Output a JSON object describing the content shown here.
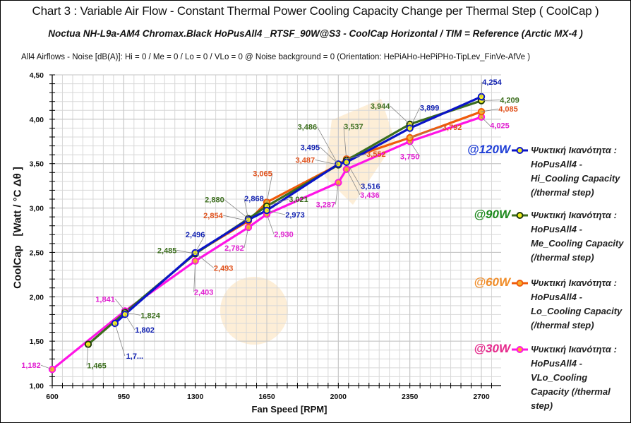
{
  "header": {
    "title": "Chart 3 : Variable Air Flow - Constant Thermal Power  Cooling Capacity Change per Thermal Step ( CoolCap )",
    "subtitle": "Noctua NH-L9a-AM4 Chromax.Black  HoPusAll4 _RTSF_90W@S3  -  CoolCap  Horizontal    /  TIM =  Reference   (Arctic MX-4 )",
    "info": "All4  Airflows  -  Noise [dB(A)]: Hi = 0 / Me = 0 / Lo = 0 / VLo = 0 @ Noise background = 0    (Orientation: HePiAHo-HePiPHo-TipLev_FinVe-AfVe  )"
  },
  "chart_data": {
    "type": "line",
    "title": "Chart 3 : Variable Air Flow - Constant Thermal Power  Cooling Capacity Change per Thermal Step ( CoolCap )",
    "xlabel": "Fan Speed  [RPM]",
    "ylabel": "CoolCap   [Watt / °C Δθ ]",
    "xlim": [
      600,
      2800
    ],
    "ylim": [
      1.0,
      4.5
    ],
    "x_ticks": [
      "600",
      "950",
      "1300",
      "1650",
      "2000",
      "2350",
      "2700"
    ],
    "x_tick_values": [
      600,
      950,
      1300,
      1650,
      2000,
      2350,
      2700
    ],
    "y_ticks": [
      "1,00",
      "1,50",
      "2,00",
      "2,50",
      "3,00",
      "3,50",
      "4,00",
      "4,50"
    ],
    "y_tick_values": [
      1.0,
      1.5,
      2.0,
      2.5,
      3.0,
      3.5,
      4.0,
      4.5
    ],
    "grid": true,
    "legend_position": "right",
    "series": [
      {
        "name": "Ψυκτική Ικανότητα : HoPusAll4 - Hi_Cooling Capacity (/thermal step)",
        "tag": "@120W",
        "color": "#0a14c8",
        "tag_color": "#1f3fd6",
        "label_color": "#1020b0",
        "x": [
          907,
          956,
          1300,
          1560,
          1650,
          2000,
          2040,
          2350,
          2700
        ],
        "values": [
          1.7,
          1.802,
          2.496,
          2.868,
          2.973,
          3.495,
          3.516,
          3.899,
          4.254
        ],
        "labels": [
          "1,7...",
          "1,802",
          "2,496",
          "2,868",
          "2,973",
          "3,495",
          "3,516",
          "3,899",
          "4,254"
        ]
      },
      {
        "name": "Ψυκτική Ικανότητα : HoPusAll4 - Me_Cooling Capacity (/thermal step)",
        "tag": "@90W",
        "color": "#3c6e1e",
        "tag_color": "#1e8a1e",
        "label_color": "#3c6e1e",
        "x": [
          776,
          956,
          1300,
          1560,
          1650,
          2000,
          2040,
          2350,
          2700
        ],
        "values": [
          1.465,
          1.824,
          2.485,
          2.88,
          3.021,
          3.486,
          3.537,
          3.944,
          4.209
        ],
        "labels": [
          "1,465",
          "1,824",
          "2,485",
          "2,880",
          "3,021",
          "3,486",
          "3,537",
          "3,944",
          "4,209"
        ]
      },
      {
        "name": "Ψυκτική Ικανότητα : HoPusAll4 - Lo_Cooling Capacity (/thermal step)",
        "tag": "@60W",
        "color": "#f05a0a",
        "tag_color": "#f08c28",
        "label_color": "#e0501a",
        "x": [
          1300,
          1560,
          1650,
          2000,
          2040,
          2350,
          2700
        ],
        "values": [
          2.493,
          2.854,
          3.065,
          3.487,
          3.552,
          3.792,
          4.085
        ],
        "labels": [
          "2,493",
          "2,854",
          "3,065",
          "3,487",
          "3,552",
          "3,792",
          "4,085"
        ]
      },
      {
        "name": "Ψυκτική Ικανότητα : HoPusAll4 - VLo_Cooling Capacity (/thermal step)",
        "tag": "@30W",
        "color": "#ff14e6",
        "tag_color": "#e6288c",
        "label_color": "#e020d0",
        "x": [
          600,
          956,
          1300,
          1560,
          1650,
          2000,
          2040,
          2350,
          2700
        ],
        "values": [
          1.182,
          1.841,
          2.403,
          2.782,
          2.93,
          3.287,
          3.436,
          3.75,
          4.025
        ],
        "labels": [
          "1,182",
          "1,841",
          "2,403",
          "2,782",
          "2,930",
          "3,287",
          "3,436",
          "3,750",
          "4,025"
        ]
      }
    ]
  },
  "legend": [
    {
      "tag": "@120W",
      "lines": [
        "Ψυκτική Ικανότητα :",
        "HoPusAll4 -",
        "Hi_Cooling Capacity",
        "(/thermal step)"
      ]
    },
    {
      "tag": "@90W",
      "lines": [
        "Ψυκτική Ικανότητα :",
        "HoPusAll4 -",
        "Me_Cooling Capacity",
        "(/thermal step)"
      ]
    },
    {
      "tag": "@60W",
      "lines": [
        "Ψυκτική Ικανότητα :",
        "HoPusAll4 -",
        "Lo_Cooling Capacity",
        "(/thermal step)"
      ]
    },
    {
      "tag": "@30W",
      "lines": [
        "Ψυκτική Ικανότητα :",
        "HoPusAll4 -",
        "VLo_Cooling",
        "Capacity (/thermal",
        "step)"
      ]
    }
  ]
}
